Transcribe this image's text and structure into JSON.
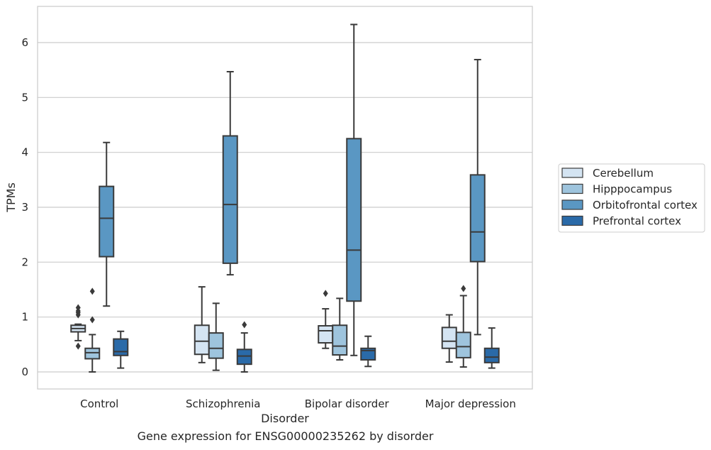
{
  "caption": "Gene expression for ENSG00000235262 by disorder",
  "chart_data": {
    "type": "boxplot",
    "title": "",
    "xlabel": "Disorder",
    "ylabel": "TPMs",
    "ylim": [
      -0.3,
      6.6
    ],
    "yticks": [
      0,
      1,
      2,
      3,
      4,
      5,
      6
    ],
    "grid": "horizontal",
    "legend_position": "right",
    "categories": [
      "Control",
      "Schizophrenia",
      "Bipolar disorder",
      "Major depression"
    ],
    "series": [
      {
        "name": "Cerebellum",
        "color": "#d4e4f2",
        "boxes": [
          {
            "whislo": 0.57,
            "q1": 0.73,
            "med": 0.79,
            "q3": 0.85,
            "whishi": 0.87,
            "fliers": [
              0.47,
              1.04,
              1.08,
              1.11,
              1.17
            ]
          },
          {
            "whislo": 0.17,
            "q1": 0.32,
            "med": 0.56,
            "q3": 0.85,
            "whishi": 1.55,
            "fliers": []
          },
          {
            "whislo": 0.43,
            "q1": 0.53,
            "med": 0.75,
            "q3": 0.84,
            "whishi": 1.15,
            "fliers": [
              1.43
            ]
          },
          {
            "whislo": 0.18,
            "q1": 0.43,
            "med": 0.56,
            "q3": 0.81,
            "whishi": 1.04,
            "fliers": []
          }
        ]
      },
      {
        "name": "Hipppocampus",
        "color": "#9ec4dd",
        "boxes": [
          {
            "whislo": 0.0,
            "q1": 0.24,
            "med": 0.35,
            "q3": 0.43,
            "whishi": 0.68,
            "fliers": [
              0.95,
              1.47
            ]
          },
          {
            "whislo": 0.03,
            "q1": 0.25,
            "med": 0.43,
            "q3": 0.71,
            "whishi": 1.25,
            "fliers": []
          },
          {
            "whislo": 0.22,
            "q1": 0.31,
            "med": 0.47,
            "q3": 0.85,
            "whishi": 1.34,
            "fliers": []
          },
          {
            "whislo": 0.09,
            "q1": 0.26,
            "med": 0.46,
            "q3": 0.72,
            "whishi": 1.39,
            "fliers": [
              1.52
            ]
          }
        ]
      },
      {
        "name": "Orbitofrontal cortex",
        "color": "#5a97c3",
        "boxes": [
          {
            "whislo": 1.2,
            "q1": 2.1,
            "med": 2.8,
            "q3": 3.38,
            "whishi": 4.18,
            "fliers": []
          },
          {
            "whislo": 1.77,
            "q1": 1.98,
            "med": 3.05,
            "q3": 4.3,
            "whishi": 5.47,
            "fliers": []
          },
          {
            "whislo": 0.3,
            "q1": 1.29,
            "med": 2.22,
            "q3": 4.25,
            "whishi": 6.33,
            "fliers": []
          },
          {
            "whislo": 0.68,
            "q1": 2.01,
            "med": 2.55,
            "q3": 3.59,
            "whishi": 5.69,
            "fliers": []
          }
        ]
      },
      {
        "name": "Prefrontal cortex",
        "color": "#2a6aa8",
        "boxes": [
          {
            "whislo": 0.07,
            "q1": 0.3,
            "med": 0.37,
            "q3": 0.6,
            "whishi": 0.74,
            "fliers": []
          },
          {
            "whislo": 0.0,
            "q1": 0.14,
            "med": 0.29,
            "q3": 0.41,
            "whishi": 0.71,
            "fliers": [
              0.86
            ]
          },
          {
            "whislo": 0.1,
            "q1": 0.22,
            "med": 0.39,
            "q3": 0.43,
            "whishi": 0.65,
            "fliers": []
          },
          {
            "whislo": 0.07,
            "q1": 0.17,
            "med": 0.27,
            "q3": 0.43,
            "whishi": 0.8,
            "fliers": []
          }
        ]
      }
    ]
  }
}
